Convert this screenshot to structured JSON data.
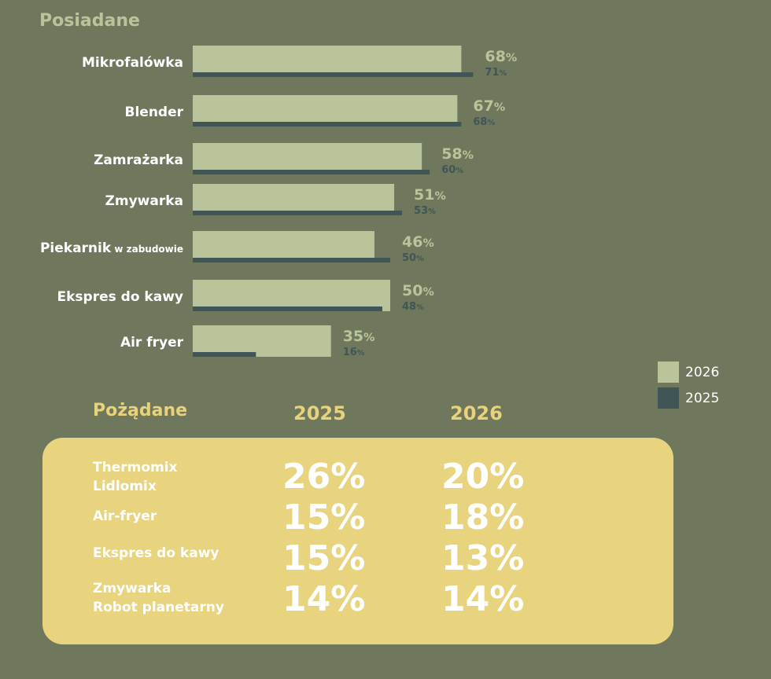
{
  "owned": {
    "title": "Posiadane"
  },
  "legend": [
    {
      "label": "2026",
      "color": "#b9c49a"
    },
    {
      "label": "2025",
      "color": "#3f5556"
    }
  ],
  "chart_data": {
    "type": "bar",
    "orientation": "horizontal",
    "title": "Posiadane",
    "categories": [
      {
        "main": "Mikrofalówka",
        "sub": ""
      },
      {
        "main": "Blender",
        "sub": ""
      },
      {
        "main": "Zamrażarka",
        "sub": ""
      },
      {
        "main": "Zmywarka",
        "sub": ""
      },
      {
        "main": "Piekarnik",
        "sub": "w zabudowie"
      },
      {
        "main": "Ekspres do kawy",
        "sub": ""
      },
      {
        "main": "Air fryer",
        "sub": ""
      }
    ],
    "series": [
      {
        "name": "2026",
        "color": "#b9c49a",
        "values": [
          68,
          67,
          58,
          51,
          46,
          50,
          35
        ]
      },
      {
        "name": "2025",
        "color": "#3f5556",
        "values": [
          71,
          68,
          60,
          53,
          50,
          48,
          16
        ]
      }
    ],
    "unit": "%",
    "xlim": [
      0,
      100
    ],
    "grid": false,
    "legend_position": "bottom-right"
  },
  "desired": {
    "title": "Pożądane",
    "year_a": "2025",
    "year_b": "2026",
    "rows": [
      {
        "label": [
          "Thermomix",
          "Lidlomix"
        ],
        "v2025": "26%",
        "v2026": "20%"
      },
      {
        "label": [
          "Air-fryer"
        ],
        "v2025": "15%",
        "v2026": "18%"
      },
      {
        "label": [
          "Ekspres do kawy"
        ],
        "v2025": "15%",
        "v2026": "13%"
      },
      {
        "label": [
          "Zmywarka",
          "Robot planetarny"
        ],
        "v2025": "14%",
        "v2026": "14%"
      }
    ]
  }
}
